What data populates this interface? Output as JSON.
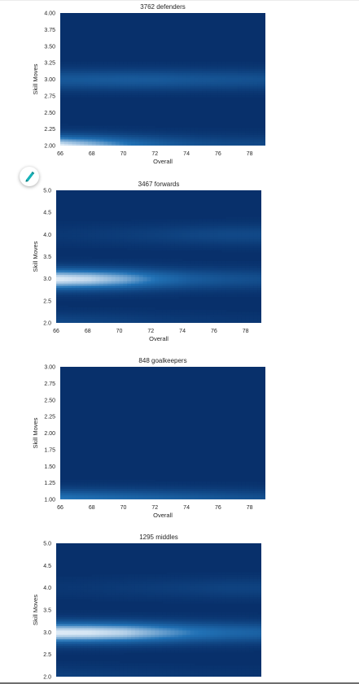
{
  "chart_data": [
    {
      "type": "heatmap",
      "title": "3762 defenders",
      "xlabel": "Overall",
      "ylabel": "Skill Moves",
      "xlim": [
        66,
        79
      ],
      "ylim": [
        2.0,
        4.0
      ],
      "xticks": [
        "66",
        "68",
        "70",
        "72",
        "74",
        "76",
        "78"
      ],
      "yticks": [
        "2.00",
        "2.25",
        "2.50",
        "2.75",
        "3.00",
        "3.25",
        "3.50",
        "3.75",
        "4.00"
      ],
      "bands": [
        {
          "y": 2.0,
          "intensity": [
            1.0,
            0.8,
            0.55,
            0.38,
            0.27,
            0.22,
            0.2
          ]
        },
        {
          "y": 3.0,
          "intensity": [
            0.32,
            0.33,
            0.34,
            0.33,
            0.3,
            0.28,
            0.26
          ]
        },
        {
          "y": 4.0,
          "intensity": [
            0.0,
            0.0,
            0.0,
            0.0,
            0.0,
            0.0,
            0.0
          ]
        }
      ]
    },
    {
      "type": "heatmap",
      "title": "3467 forwards",
      "xlabel": "Overall",
      "ylabel": "Skill Moves",
      "xlim": [
        66,
        79
      ],
      "ylim": [
        2.0,
        5.0
      ],
      "xticks": [
        "66",
        "68",
        "70",
        "72",
        "74",
        "76",
        "78"
      ],
      "yticks": [
        "2.0",
        "2.5",
        "3.0",
        "3.5",
        "4.0",
        "4.5",
        "5.0"
      ],
      "bands": [
        {
          "y": 2.0,
          "intensity": [
            0.2,
            0.17,
            0.14,
            0.1,
            0.08,
            0.06,
            0.05
          ]
        },
        {
          "y": 3.0,
          "intensity": [
            1.0,
            0.92,
            0.75,
            0.5,
            0.35,
            0.28,
            0.24
          ]
        },
        {
          "y": 4.0,
          "intensity": [
            0.06,
            0.08,
            0.1,
            0.13,
            0.17,
            0.2,
            0.2
          ]
        },
        {
          "y": 5.0,
          "intensity": [
            0.0,
            0.0,
            0.0,
            0.0,
            0.0,
            0.0,
            0.0
          ]
        }
      ]
    },
    {
      "type": "heatmap",
      "title": "848 goalkeepers",
      "xlabel": "Overall",
      "ylabel": "Skill Moves",
      "xlim": [
        66,
        79
      ],
      "ylim": [
        1.0,
        3.0
      ],
      "xticks": [
        "66",
        "68",
        "70",
        "72",
        "74",
        "76",
        "78"
      ],
      "yticks": [
        "1.00",
        "1.25",
        "1.50",
        "1.75",
        "2.00",
        "2.25",
        "2.50",
        "2.75",
        "3.00"
      ],
      "bands": [
        {
          "y": 1.0,
          "intensity": [
            0.55,
            0.5,
            0.45,
            0.4,
            0.35,
            0.3,
            0.26
          ]
        }
      ]
    },
    {
      "type": "heatmap",
      "title": "1295 middles",
      "xlabel": "Overall",
      "ylabel": "Skill Moves",
      "xlim": [
        66,
        79
      ],
      "ylim": [
        2.0,
        5.0
      ],
      "xticks": [
        "66",
        "68",
        "70",
        "72",
        "74",
        "76",
        "78"
      ],
      "yticks": [
        "2.0",
        "2.5",
        "3.0",
        "3.5",
        "4.0",
        "4.5",
        "5.0"
      ],
      "bands": [
        {
          "y": 2.0,
          "intensity": [
            0.14,
            0.12,
            0.1,
            0.08,
            0.06,
            0.05,
            0.04
          ]
        },
        {
          "y": 3.0,
          "intensity": [
            1.0,
            0.98,
            0.9,
            0.72,
            0.55,
            0.45,
            0.4
          ]
        },
        {
          "y": 4.0,
          "intensity": [
            0.05,
            0.06,
            0.08,
            0.1,
            0.12,
            0.15,
            0.15
          ]
        },
        {
          "y": 5.0,
          "intensity": [
            0.0,
            0.0,
            0.0,
            0.0,
            0.0,
            0.0,
            0.0
          ]
        }
      ]
    }
  ],
  "colors": {
    "cmap_low": "#08306b",
    "cmap_mid": "#2171b5",
    "cmap_high": "#f7fbff",
    "fab_icon": "#16b2b8"
  },
  "icons": {
    "fab": "marker-pen-icon"
  }
}
